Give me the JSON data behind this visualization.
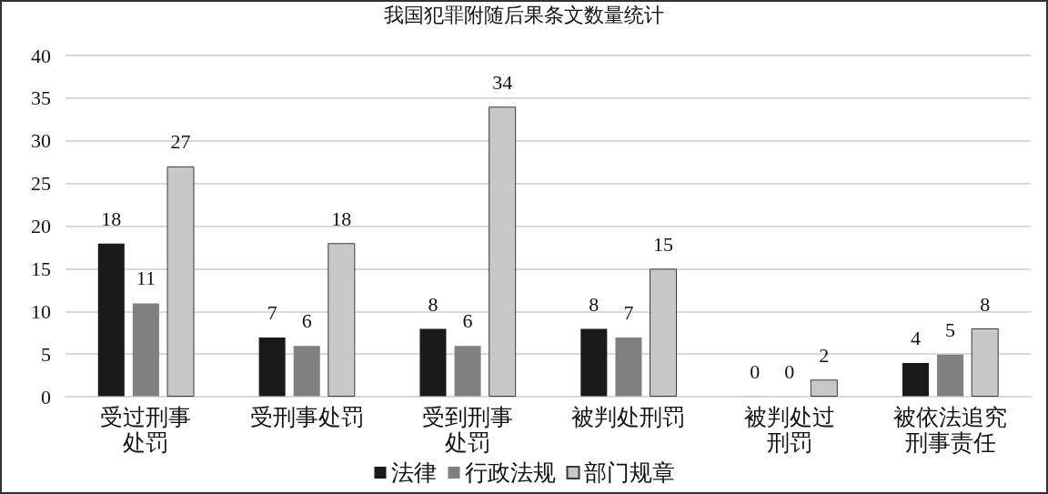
{
  "chart_data": {
    "type": "bar",
    "title": "我国犯罪附随后果条文数量统计",
    "categories": [
      "受过刑事处罚",
      "受刑事处罚",
      "受到刑事处罚",
      "被判处刑罚",
      "被判处过刑罚",
      "被依法追究刑事责任"
    ],
    "series": [
      {
        "name": "法律",
        "color": "#1a1a1a",
        "values": [
          18,
          7,
          8,
          8,
          0,
          4
        ]
      },
      {
        "name": "行政法规",
        "color": "#808080",
        "values": [
          11,
          6,
          6,
          7,
          0,
          5
        ]
      },
      {
        "name": "部门规章",
        "color": "#c8c8c8",
        "values": [
          27,
          18,
          34,
          15,
          2,
          8
        ]
      }
    ],
    "ylim": [
      0,
      40
    ],
    "yticks": [
      0,
      5,
      10,
      15,
      20,
      25,
      30,
      35,
      40
    ],
    "grid": "y",
    "legend": "bottom",
    "data_labels": true
  }
}
